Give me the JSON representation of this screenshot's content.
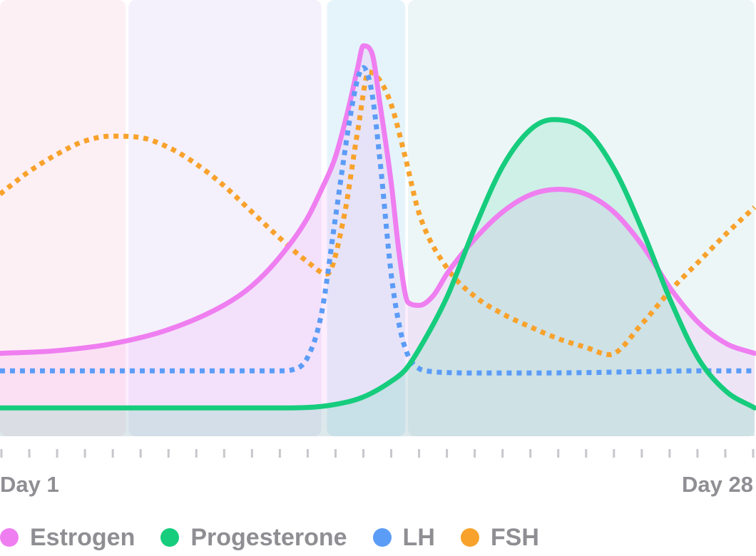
{
  "chart_data": {
    "type": "line",
    "title": "",
    "xlabel": "",
    "ylabel": "",
    "x_range": [
      1,
      28
    ],
    "y_range": [
      0,
      100
    ],
    "grid": false,
    "legend_position": "bottom-left",
    "x_tick_labels": [
      {
        "day": 1,
        "label": "Day 1"
      },
      {
        "day": 28,
        "label": "Day 28"
      }
    ],
    "phases": [
      {
        "start": 1,
        "end": 5.5,
        "color": "#fdf0f5"
      },
      {
        "start": 5.6,
        "end": 12.5,
        "color": "#f4f1fd"
      },
      {
        "start": 12.7,
        "end": 15.5,
        "color": "#e5f4fb"
      },
      {
        "start": 15.6,
        "end": 28,
        "color": "#edf6f7"
      }
    ],
    "series": [
      {
        "name": "Estrogen",
        "color": "#ef7ef0",
        "style": "solid",
        "fill": true,
        "x": [
          1,
          3,
          5,
          7,
          9,
          10,
          11,
          12,
          12.5,
          13,
          13.5,
          13.8,
          14,
          14.3,
          14.6,
          15,
          15.3,
          15.6,
          16,
          16.5,
          17,
          18,
          19,
          20,
          21,
          22,
          23,
          24,
          25,
          26,
          27,
          28
        ],
        "y": [
          19,
          19.6,
          21.2,
          24.4,
          30,
          34.4,
          41,
          50,
          56.5,
          64,
          76,
          84.5,
          89.5,
          88,
          76,
          58,
          41,
          30.7,
          30,
          32.2,
          37.3,
          45.3,
          51.5,
          55.4,
          56.6,
          55.4,
          51.2,
          43.6,
          33.8,
          26,
          21.2,
          19
        ]
      },
      {
        "name": "Progesterone",
        "color": "#16cc7d",
        "style": "solid",
        "fill": true,
        "x": [
          1,
          3,
          5,
          7,
          9,
          11,
          12,
          13,
          14,
          15,
          15.5,
          16,
          17,
          18,
          19,
          20,
          20.8,
          22,
          23,
          24,
          25,
          26,
          27,
          28
        ],
        "y": [
          6.5,
          6.5,
          6.5,
          6.5,
          6.5,
          6.5,
          6.6,
          7.3,
          9,
          12.6,
          15.2,
          20,
          32,
          48,
          62,
          70.4,
          72.6,
          70,
          61,
          47,
          31,
          17.7,
          10.2,
          6.5
        ]
      },
      {
        "name": "LH",
        "color": "#5b9cf7",
        "style": "dotted",
        "fill": false,
        "x": [
          1,
          3,
          5,
          7,
          9,
          11,
          11.5,
          12,
          12.5,
          13,
          13.5,
          13.8,
          14,
          14.3,
          14.6,
          15,
          15.3,
          15.6,
          16,
          16.5,
          17,
          18,
          20,
          22,
          24,
          26,
          28
        ],
        "y": [
          15,
          15,
          15,
          15,
          15,
          15,
          15.3,
          18,
          28,
          50,
          72,
          82,
          84.5,
          79,
          63,
          37,
          25,
          18.5,
          15.5,
          14.8,
          14.6,
          14.5,
          14.5,
          14.6,
          14.8,
          15,
          15
        ]
      },
      {
        "name": "FSH",
        "color": "#f8a22c",
        "style": "dotted",
        "fill": false,
        "x": [
          1,
          2,
          3,
          4,
          5,
          6,
          7,
          8,
          9,
          10,
          11,
          12,
          12.7,
          13.3,
          13.8,
          14.2,
          14.6,
          15,
          15.5,
          16,
          17,
          18,
          19,
          20,
          21,
          22,
          22.8,
          24,
          25,
          26,
          27,
          28
        ],
        "y": [
          55.5,
          60.5,
          64.5,
          67.6,
          68.8,
          68.5,
          66.3,
          62.5,
          57.5,
          51.5,
          45.5,
          40,
          37.2,
          50,
          70,
          83.5,
          81.5,
          76,
          64,
          51,
          38.5,
          32,
          28,
          25,
          22.3,
          20.3,
          18.7,
          26,
          33.5,
          40,
          46.5,
          52.5
        ]
      }
    ]
  }
}
